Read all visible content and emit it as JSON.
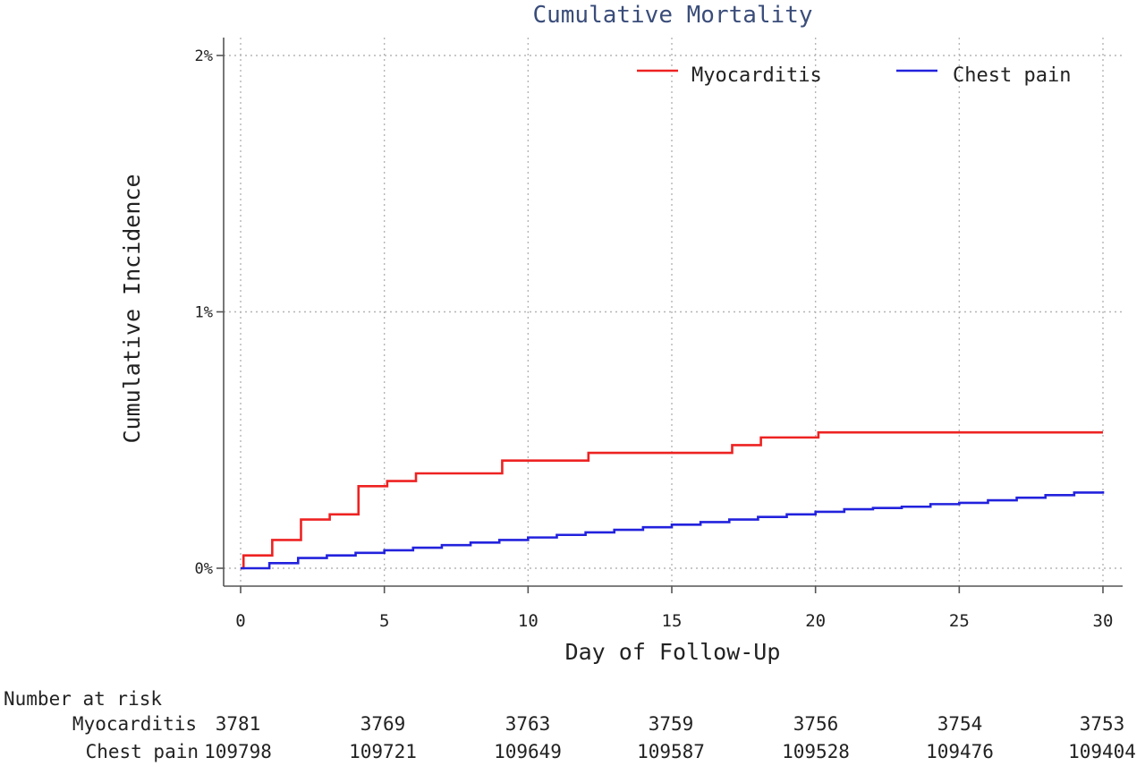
{
  "chart_data": {
    "type": "line",
    "step": true,
    "title": "Cumulative Mortality",
    "xlabel": "Day of Follow-Up",
    "ylabel": "Cumulative Incidence",
    "xlim": [
      0,
      30
    ],
    "ylim": [
      0,
      2
    ],
    "xticks": [
      0,
      5,
      10,
      15,
      20,
      25,
      30
    ],
    "yticks": [
      {
        "value": 0,
        "label": "0%"
      },
      {
        "value": 1,
        "label": "1%"
      },
      {
        "value": 2,
        "label": "2%"
      }
    ],
    "grid": true,
    "legend_position": "top-right",
    "series": [
      {
        "name": "Myocarditis",
        "color": "#ee2222",
        "points": [
          [
            0,
            0
          ],
          [
            0.1,
            0.05
          ],
          [
            1.1,
            0.11
          ],
          [
            2.1,
            0.19
          ],
          [
            3.1,
            0.21
          ],
          [
            4.1,
            0.32
          ],
          [
            5.1,
            0.34
          ],
          [
            6.1,
            0.37
          ],
          [
            9.1,
            0.42
          ],
          [
            12.1,
            0.45
          ],
          [
            17.1,
            0.48
          ],
          [
            18.1,
            0.51
          ],
          [
            20.1,
            0.53
          ],
          [
            30,
            0.53
          ]
        ]
      },
      {
        "name": "Chest pain",
        "color": "#2222dd",
        "points": [
          [
            0,
            0
          ],
          [
            1,
            0.02
          ],
          [
            2,
            0.04
          ],
          [
            3,
            0.05
          ],
          [
            4,
            0.06
          ],
          [
            5,
            0.07
          ],
          [
            6,
            0.08
          ],
          [
            7,
            0.09
          ],
          [
            8,
            0.1
          ],
          [
            9,
            0.11
          ],
          [
            10,
            0.12
          ],
          [
            11,
            0.13
          ],
          [
            12,
            0.14
          ],
          [
            13,
            0.15
          ],
          [
            14,
            0.16
          ],
          [
            15,
            0.17
          ],
          [
            16,
            0.18
          ],
          [
            17,
            0.19
          ],
          [
            18,
            0.2
          ],
          [
            19,
            0.21
          ],
          [
            20,
            0.22
          ],
          [
            21,
            0.23
          ],
          [
            22,
            0.235
          ],
          [
            23,
            0.24
          ],
          [
            24,
            0.25
          ],
          [
            25,
            0.255
          ],
          [
            26,
            0.265
          ],
          [
            27,
            0.275
          ],
          [
            28,
            0.285
          ],
          [
            29,
            0.295
          ],
          [
            30,
            0.3
          ]
        ]
      }
    ],
    "risk_table": {
      "header": "Number at risk",
      "rows": [
        {
          "label": "Myocarditis",
          "values": [
            "3781",
            "3769",
            "3763",
            "3759",
            "3756",
            "3754",
            "3753"
          ]
        },
        {
          "label": "Chest pain",
          "values": [
            "109798",
            "109721",
            "109649",
            "109587",
            "109528",
            "109476",
            "109404"
          ]
        }
      ]
    }
  }
}
